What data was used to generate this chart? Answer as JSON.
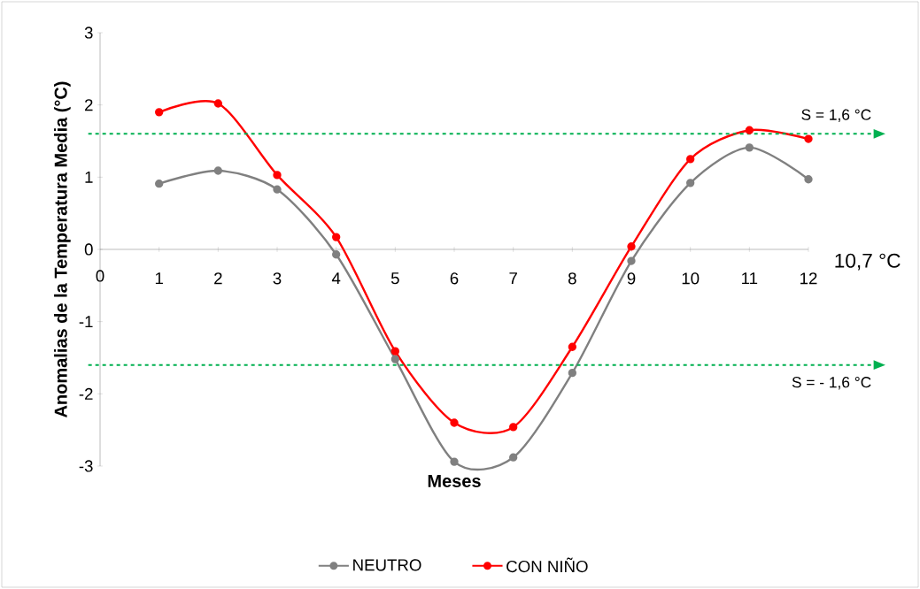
{
  "chart_data": {
    "type": "line",
    "xlabel": "Meses",
    "ylabel": "Anomalias de la Temperatura Media (°C)",
    "x": [
      1,
      2,
      3,
      4,
      5,
      6,
      7,
      8,
      9,
      10,
      11,
      12
    ],
    "series": [
      {
        "name": "NEUTRO",
        "color": "#808080",
        "values": [
          0.91,
          1.09,
          0.83,
          -0.07,
          -1.52,
          -2.94,
          -2.88,
          -1.71,
          -0.16,
          0.92,
          1.41,
          0.97
        ]
      },
      {
        "name": "CON NIÑO",
        "color": "#ff0000",
        "values": [
          1.9,
          2.02,
          1.03,
          0.17,
          -1.41,
          -2.4,
          -2.46,
          -1.35,
          0.04,
          1.25,
          1.65,
          1.53
        ]
      }
    ],
    "xlim": [
      0,
      12
    ],
    "xticks": [
      0,
      1,
      2,
      3,
      4,
      5,
      6,
      7,
      8,
      9,
      10,
      11,
      12
    ],
    "ylim": [
      -3,
      3
    ],
    "yticks": [
      -3,
      -2,
      -1,
      0,
      1,
      2,
      3
    ],
    "ref_lines": [
      {
        "axis": "y",
        "value": 1.6,
        "label": "S = 1,6 °C",
        "color": "#00b050",
        "line_style": "dashed"
      },
      {
        "axis": "y",
        "value": -1.6,
        "label": "S = - 1,6 °C",
        "color": "#00b050",
        "line_style": "dashed"
      }
    ],
    "annotations": [
      "10,7 °C"
    ],
    "marker": "circle",
    "legend": "bottom"
  }
}
